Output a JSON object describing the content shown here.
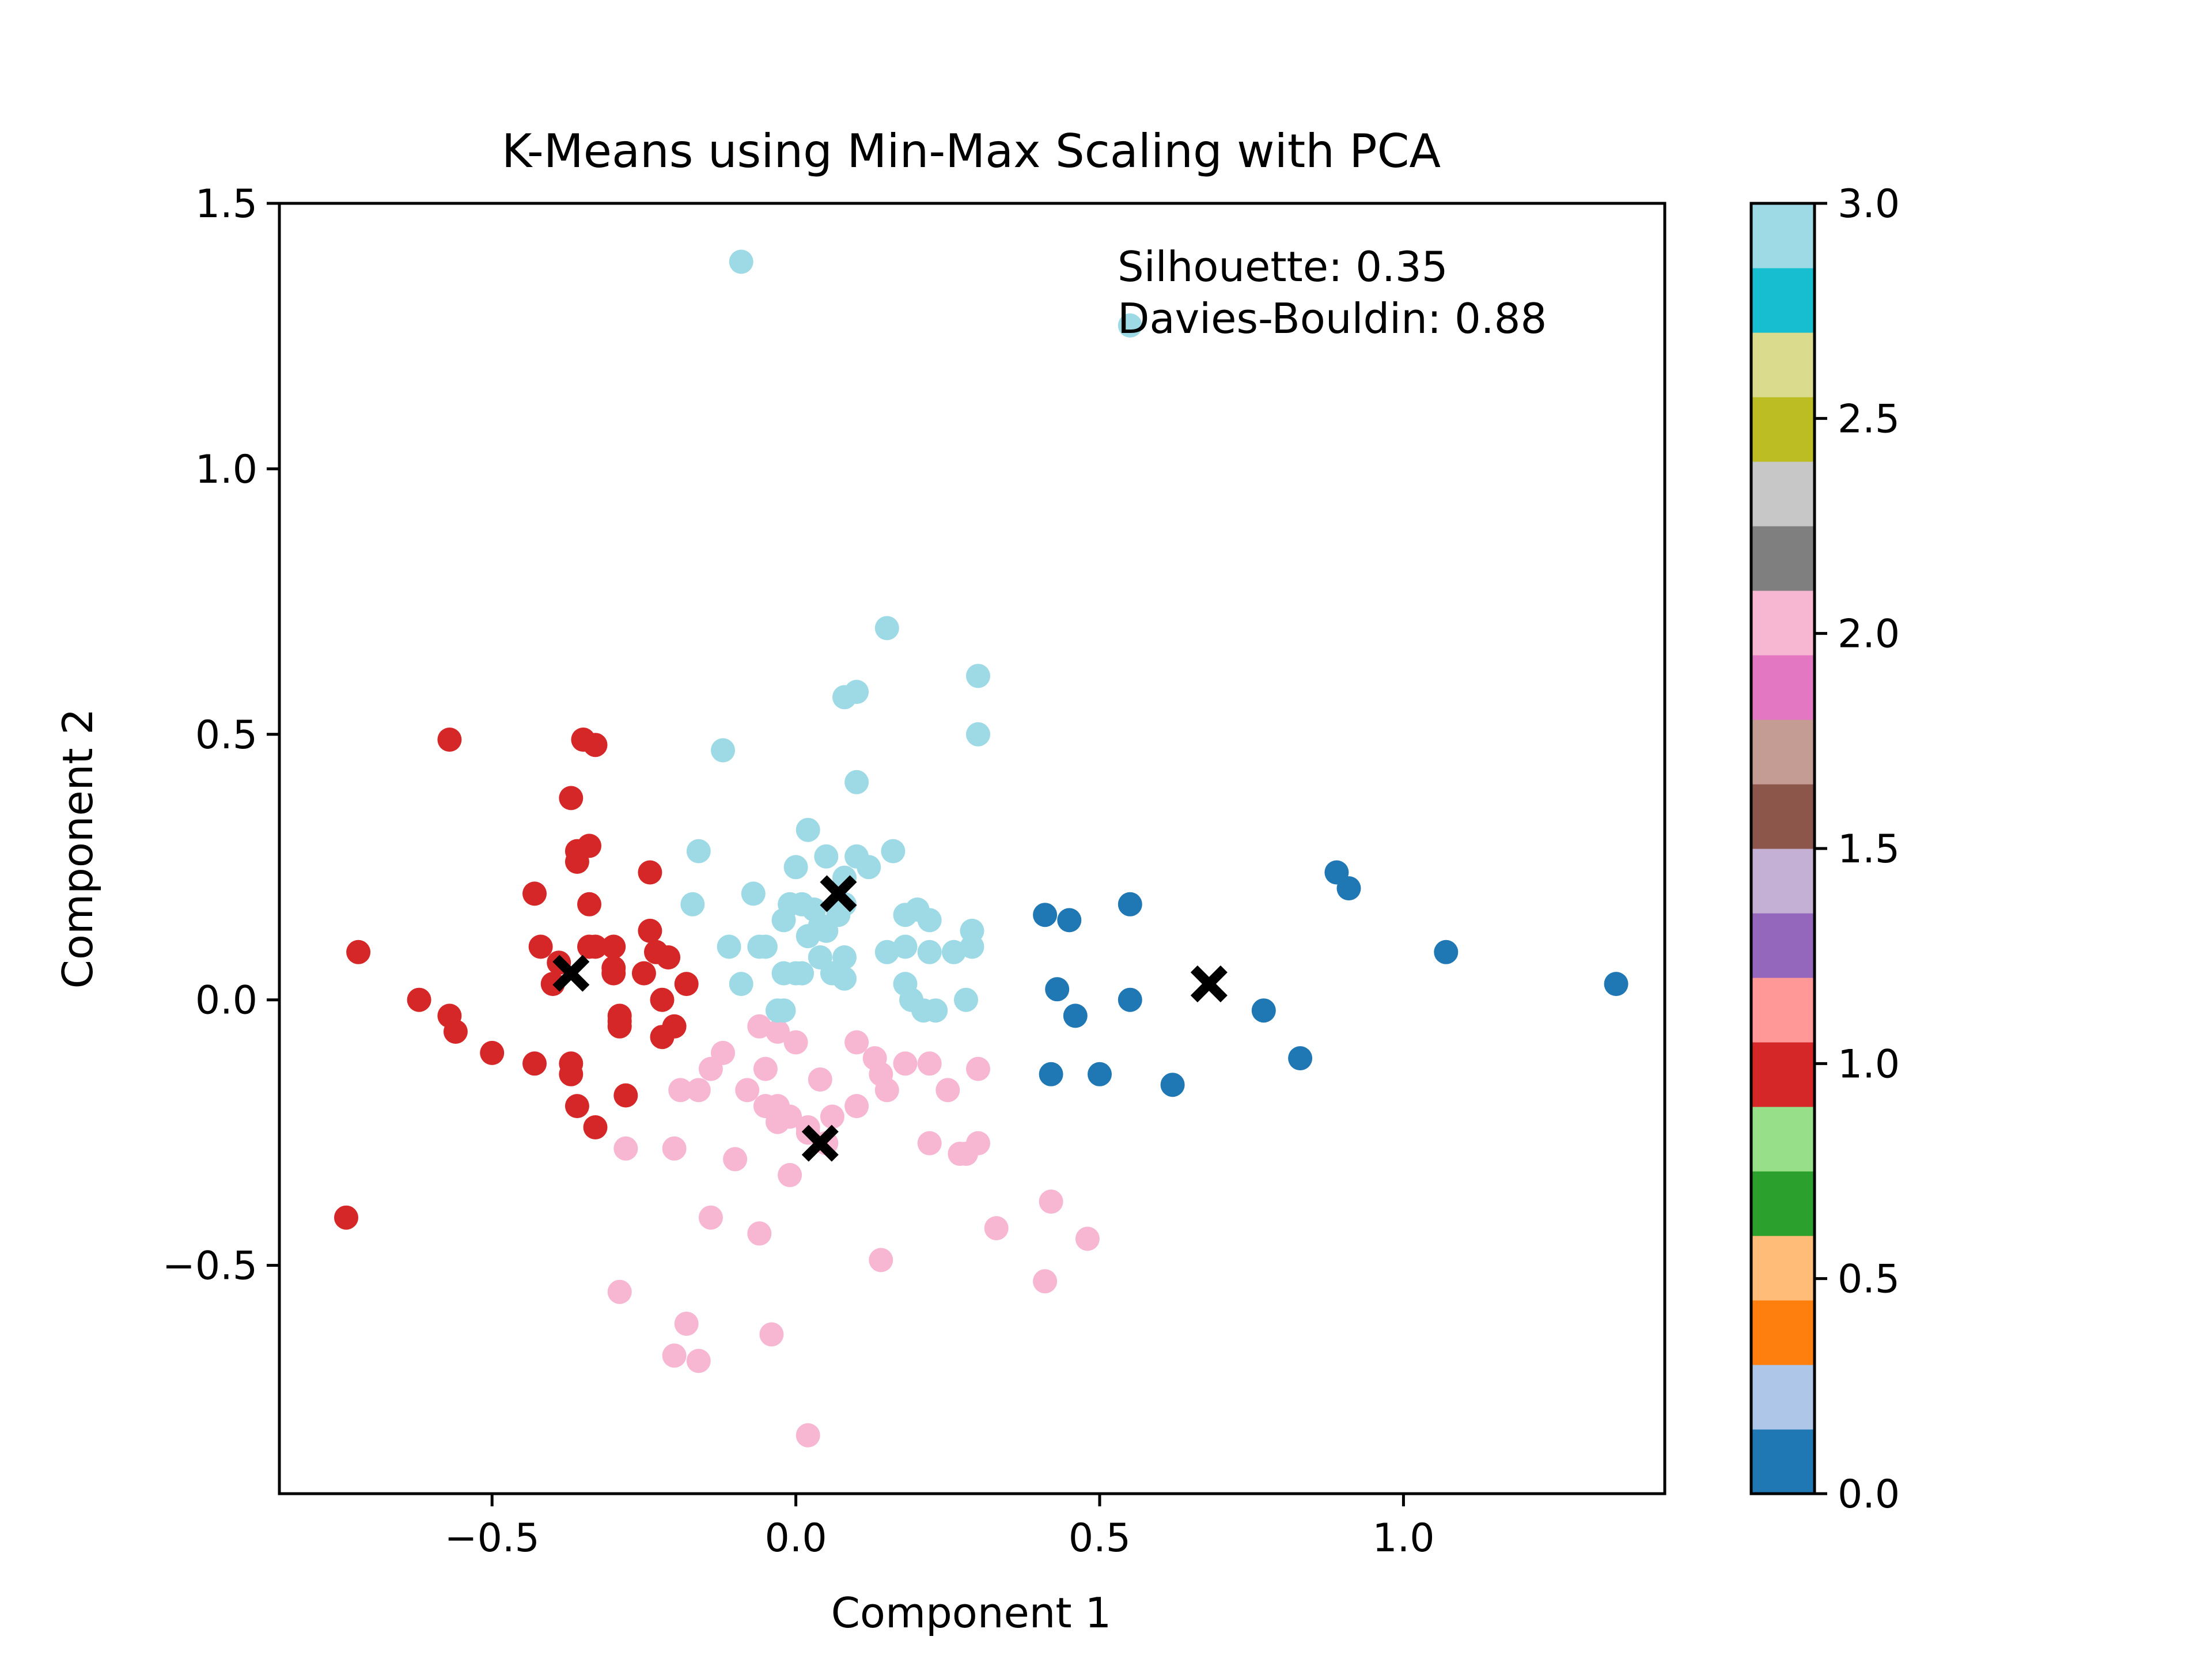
{
  "chart_data": {
    "type": "scatter",
    "title": "K-Means using Min-Max Scaling with PCA",
    "xlabel": "Component 1",
    "ylabel": "Component 2",
    "xlim": [
      -0.85,
      1.43
    ],
    "ylim": [
      -0.93,
      1.5
    ],
    "xticks": [
      -0.5,
      0.0,
      0.5,
      1.0
    ],
    "xtick_labels": [
      "−0.5",
      "0.0",
      "0.5",
      "1.0"
    ],
    "yticks": [
      -0.5,
      0.0,
      0.5,
      1.0,
      1.5
    ],
    "ytick_labels": [
      "−0.5",
      "0.0",
      "0.5",
      "1.0",
      "1.5"
    ],
    "grid": false,
    "annotations": [
      "Silhouette: 0.35",
      "Davies-Bouldin: 0.88"
    ],
    "colormap": "tab20",
    "cluster_colors": {
      "0": "#1f77b4",
      "1": "#d62728",
      "2": "#f7b6d2",
      "3": "#9edae5"
    },
    "colorbar": {
      "range": [
        0,
        3
      ],
      "ticks": [
        0.0,
        0.5,
        1.0,
        1.5,
        2.0,
        2.5,
        3.0
      ],
      "tick_labels": [
        "0.0",
        "0.5",
        "1.0",
        "1.5",
        "2.0",
        "2.5",
        "3.0"
      ],
      "colors": [
        "#1f77b4",
        "#aec7e8",
        "#ff7f0e",
        "#ffbb78",
        "#2ca02c",
        "#98df8a",
        "#d62728",
        "#ff9896",
        "#9467bd",
        "#c5b0d5",
        "#8c564b",
        "#c49c94",
        "#e377c2",
        "#f7b6d2",
        "#7f7f7f",
        "#c7c7c7",
        "#bcbd22",
        "#dbdb8d",
        "#17becf",
        "#9edae5"
      ]
    },
    "centroids": [
      {
        "cluster": 0,
        "x": 0.68,
        "y": 0.03
      },
      {
        "cluster": 1,
        "x": -0.37,
        "y": 0.05
      },
      {
        "cluster": 2,
        "x": 0.04,
        "y": -0.27
      },
      {
        "cluster": 3,
        "x": 0.07,
        "y": 0.2
      }
    ],
    "series": [
      {
        "cluster": 0,
        "color": "#1f77b4",
        "x": [
          0.41,
          0.45,
          0.55,
          0.43,
          0.46,
          0.55,
          0.42,
          0.5,
          0.62,
          0.77,
          0.83,
          0.89,
          0.91,
          1.07,
          1.35
        ],
        "y": [
          0.16,
          0.15,
          0.18,
          0.02,
          -0.03,
          0.0,
          -0.14,
          -0.14,
          -0.16,
          -0.02,
          -0.11,
          0.24,
          0.21,
          0.09,
          0.03
        ]
      },
      {
        "cluster": 1,
        "color": "#d62728",
        "x": [
          -0.57,
          -0.35,
          -0.33,
          -0.37,
          -0.43,
          -0.36,
          -0.34,
          -0.36,
          -0.34,
          -0.24,
          -0.34,
          -0.42,
          -0.4,
          -0.33,
          -0.3,
          -0.24,
          -0.23,
          -0.21,
          -0.25,
          -0.18,
          -0.3,
          -0.22,
          -0.2,
          -0.29,
          -0.72,
          -0.62,
          -0.57,
          -0.56,
          -0.5,
          -0.43,
          -0.37,
          -0.37,
          -0.29,
          -0.22,
          -0.36,
          -0.33,
          -0.28,
          -0.74,
          -0.39,
          -0.3,
          -0.29
        ],
        "y": [
          0.49,
          0.49,
          0.48,
          0.38,
          0.2,
          0.28,
          0.29,
          0.26,
          0.18,
          0.24,
          0.1,
          0.1,
          0.03,
          0.1,
          0.1,
          0.13,
          0.09,
          0.08,
          0.05,
          0.03,
          0.06,
          0.0,
          -0.05,
          -0.04,
          0.09,
          0.0,
          -0.03,
          -0.06,
          -0.1,
          -0.12,
          -0.12,
          -0.14,
          -0.03,
          -0.07,
          -0.2,
          -0.24,
          -0.18,
          -0.41,
          0.07,
          0.05,
          -0.05
        ]
      },
      {
        "cluster": 2,
        "color": "#f7b6d2",
        "x": [
          -0.06,
          -0.03,
          -0.05,
          0.0,
          0.04,
          0.1,
          0.13,
          0.14,
          0.18,
          0.22,
          0.25,
          0.3,
          -0.14,
          -0.16,
          -0.12,
          -0.08,
          -0.05,
          -0.03,
          -0.01,
          0.02,
          0.06,
          0.1,
          0.15,
          -0.19,
          -0.2,
          -0.1,
          -0.03,
          -0.01,
          0.02,
          0.05,
          0.22,
          0.28,
          0.3,
          0.27,
          -0.28,
          -0.14,
          -0.06,
          0.33,
          0.42,
          0.48,
          -0.29,
          0.14,
          0.41,
          -0.18,
          -0.2,
          -0.16,
          -0.04,
          0.02
        ],
        "y": [
          -0.05,
          -0.06,
          -0.13,
          -0.08,
          -0.15,
          -0.08,
          -0.11,
          -0.14,
          -0.12,
          -0.12,
          -0.17,
          -0.13,
          -0.13,
          -0.17,
          -0.1,
          -0.17,
          -0.2,
          -0.2,
          -0.22,
          -0.24,
          -0.22,
          -0.2,
          -0.17,
          -0.17,
          -0.28,
          -0.3,
          -0.23,
          -0.33,
          -0.25,
          -0.27,
          -0.27,
          -0.29,
          -0.27,
          -0.29,
          -0.28,
          -0.41,
          -0.44,
          -0.43,
          -0.38,
          -0.45,
          -0.55,
          -0.49,
          -0.53,
          -0.61,
          -0.67,
          -0.68,
          -0.63,
          -0.82
        ]
      },
      {
        "cluster": 3,
        "color": "#9edae5",
        "x": [
          -0.09,
          0.55,
          0.15,
          0.3,
          0.08,
          0.1,
          0.3,
          -0.12,
          0.1,
          -0.16,
          0.02,
          0.05,
          0.12,
          0.16,
          0.08,
          0.1,
          -0.01,
          0.0,
          -0.07,
          -0.02,
          0.01,
          0.03,
          -0.17,
          0.18,
          0.2,
          0.22,
          0.29,
          0.07,
          0.08,
          0.04,
          -0.05,
          0.02,
          0.05,
          0.15,
          0.18,
          0.22,
          0.26,
          0.29,
          -0.11,
          -0.06,
          0.0,
          0.06,
          0.08,
          -0.09,
          -0.02,
          0.01,
          0.04,
          0.08,
          0.18,
          0.19,
          0.28,
          0.23,
          0.21,
          -0.03,
          -0.02
        ],
        "y": [
          1.39,
          1.27,
          0.7,
          0.61,
          0.57,
          0.58,
          0.5,
          0.47,
          0.41,
          0.28,
          0.32,
          0.27,
          0.25,
          0.28,
          0.23,
          0.27,
          0.18,
          0.25,
          0.2,
          0.15,
          0.18,
          0.17,
          0.18,
          0.16,
          0.17,
          0.15,
          0.13,
          0.16,
          0.18,
          0.14,
          0.1,
          0.12,
          0.13,
          0.09,
          0.1,
          0.09,
          0.09,
          0.1,
          0.1,
          0.1,
          0.05,
          0.05,
          0.08,
          0.03,
          0.05,
          0.05,
          0.08,
          0.04,
          0.03,
          0.0,
          0.0,
          -0.02,
          -0.02,
          -0.02,
          -0.02
        ]
      }
    ]
  }
}
